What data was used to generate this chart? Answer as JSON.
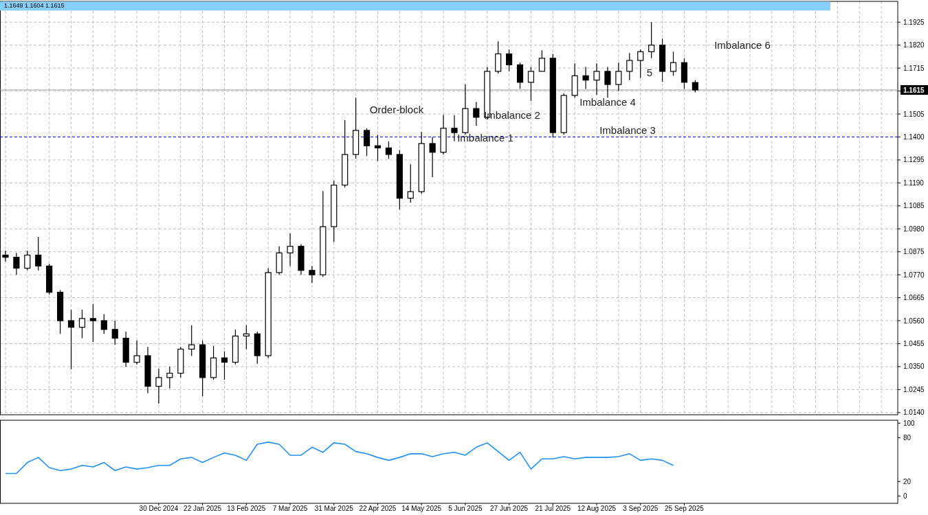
{
  "chart_data": [
    {
      "type": "candlestick",
      "color": "#000000",
      "grid": true,
      "tick_labels": "y",
      "categories": [
        null,
        null,
        null,
        null,
        null,
        null,
        null,
        null,
        null,
        null,
        null,
        null,
        null,
        null,
        null,
        null,
        null,
        null,
        null,
        null,
        null,
        null,
        null,
        null,
        null,
        null,
        null,
        null,
        null,
        null,
        null,
        null,
        null,
        null,
        null,
        null,
        null,
        null,
        null,
        null,
        null,
        null,
        null,
        null,
        null,
        null,
        null,
        null,
        null,
        null,
        null,
        null,
        null,
        null,
        null,
        null,
        null,
        null,
        null,
        null,
        null,
        null,
        null,
        null,
        null,
        null,
        null,
        null,
        null,
        null,
        null,
        null,
        null,
        null,
        null,
        null,
        null,
        null,
        null,
        null,
        null,
        null
      ],
      "ohlc": [
        [
          1.086,
          1.088,
          1.083,
          1.085
        ],
        [
          1.085,
          1.087,
          1.077,
          1.08
        ],
        [
          1.08,
          1.088,
          1.079,
          1.086
        ],
        [
          1.086,
          1.0943,
          1.079,
          1.081
        ],
        [
          1.081,
          1.082,
          1.068,
          1.069
        ],
        [
          1.069,
          1.07,
          1.05,
          1.056
        ],
        [
          1.056,
          1.061,
          1.0338,
          1.053
        ],
        [
          1.053,
          1.061,
          1.048,
          1.057
        ],
        [
          1.057,
          1.0636,
          1.0463,
          1.056
        ],
        [
          1.056,
          1.059,
          1.05,
          1.052
        ],
        [
          1.052,
          1.056,
          1.045,
          1.048
        ],
        [
          1.048,
          1.051,
          1.035,
          1.037
        ],
        [
          1.037,
          1.047,
          1.036,
          1.04
        ],
        [
          1.04,
          1.044,
          1.0228,
          1.026
        ],
        [
          1.026,
          1.034,
          1.0181,
          1.03
        ],
        [
          1.03,
          1.035,
          1.025,
          1.032
        ],
        [
          1.032,
          1.044,
          1.03,
          1.043
        ],
        [
          1.043,
          1.0538,
          1.04,
          1.045
        ],
        [
          1.045,
          1.047,
          1.0215,
          1.03
        ],
        [
          1.03,
          1.0445,
          1.029,
          1.039
        ],
        [
          1.039,
          1.042,
          1.029,
          1.037
        ],
        [
          1.037,
          1.052,
          1.036,
          1.049
        ],
        [
          1.049,
          1.054,
          1.043,
          1.05
        ],
        [
          1.05,
          1.051,
          1.0363,
          1.04
        ],
        [
          1.04,
          1.08,
          1.039,
          1.078
        ],
        [
          1.078,
          1.09,
          1.077,
          1.087
        ],
        [
          1.087,
          1.0959,
          1.081,
          1.09
        ],
        [
          1.09,
          1.091,
          1.077,
          1.079
        ],
        [
          1.079,
          1.081,
          1.0733,
          1.077
        ],
        [
          1.077,
          1.1153,
          1.076,
          1.099
        ],
        [
          1.099,
          1.12,
          1.092,
          1.118
        ],
        [
          1.118,
          1.1477,
          1.117,
          1.132
        ],
        [
          1.132,
          1.158,
          1.13,
          1.143
        ],
        [
          1.143,
          1.144,
          1.1313,
          1.136
        ],
        [
          1.136,
          1.141,
          1.129,
          1.135
        ],
        [
          1.135,
          1.138,
          1.13,
          1.132
        ],
        [
          1.132,
          1.134,
          1.1069,
          1.112
        ],
        [
          1.112,
          1.1275,
          1.11,
          1.115
        ],
        [
          1.115,
          1.1423,
          1.114,
          1.137
        ],
        [
          1.137,
          1.14,
          1.1216,
          1.133
        ],
        [
          1.133,
          1.1501,
          1.132,
          1.144
        ],
        [
          1.144,
          1.15,
          1.138,
          1.142
        ],
        [
          1.142,
          1.164,
          1.141,
          1.153
        ],
        [
          1.153,
          1.156,
          1.1452,
          1.149
        ],
        [
          1.149,
          1.172,
          1.148,
          1.17
        ],
        [
          1.17,
          1.1837,
          1.169,
          1.178
        ],
        [
          1.178,
          1.18,
          1.17,
          1.173
        ],
        [
          1.173,
          1.174,
          1.162,
          1.165
        ],
        [
          1.165,
          1.172,
          1.1564,
          1.17
        ],
        [
          1.17,
          1.1796,
          1.17,
          1.176
        ],
        [
          1.176,
          1.178,
          1.1398,
          1.142
        ],
        [
          1.142,
          1.16,
          1.141,
          1.159
        ],
        [
          1.159,
          1.1737,
          1.158,
          1.168
        ],
        [
          1.168,
          1.172,
          1.162,
          1.166
        ],
        [
          1.166,
          1.1737,
          1.1592,
          1.17
        ],
        [
          1.17,
          1.172,
          1.158,
          1.164
        ],
        [
          1.164,
          1.174,
          1.161,
          1.17
        ],
        [
          1.17,
          1.1784,
          1.166,
          1.175
        ],
        [
          1.175,
          1.18,
          1.167,
          1.179
        ],
        [
          1.179,
          1.1925,
          1.176,
          1.182
        ],
        [
          1.182,
          1.185,
          1.1652,
          1.17
        ],
        [
          1.17,
          1.179,
          1.168,
          1.174
        ],
        [
          1.174,
          1.176,
          1.162,
          1.165
        ],
        [
          1.1649,
          1.166,
          1.1604,
          1.1615
        ],
        null,
        null,
        null,
        null,
        null,
        null,
        null,
        null,
        null,
        null,
        null,
        null,
        null,
        null,
        null,
        null,
        null,
        null
      ],
      "ylim": [
        1.013,
        1.202
      ],
      "yticks": [
        {
          "value": 1.014,
          "label": "1.0140"
        },
        1.0245,
        {
          "value": 1.035,
          "label": "1.0350"
        },
        1.0455,
        {
          "value": 1.056,
          "label": "1.0560"
        },
        1.0665,
        {
          "value": 1.077,
          "label": "1.0770"
        },
        1.0875,
        {
          "value": 1.098,
          "label": "1.0980"
        },
        1.1085,
        {
          "value": 1.119,
          "label": "1.1190"
        },
        1.1295,
        {
          "value": 1.14,
          "label": "1.1400"
        },
        1.1505,
        {
          "value": 1.161,
          "label": null
        },
        1.1715,
        {
          "value": 1.182,
          "label": "1.1820"
        },
        1.1925
      ],
      "bands": [
        {
          "axis": "y",
          "from": 1.1978,
          "to": 1.2019,
          "color": "#87cefa"
        }
      ],
      "ref_lines": [
        {
          "axis": "y",
          "value": 1.14,
          "color": "#0000ff",
          "line_style": "dashed"
        },
        {
          "axis": "y",
          "value": 1.1615,
          "label": "1.1615",
          "color": "#a0a0a0",
          "line_style": "solid"
        }
      ],
      "annotations": [
        "1.1649 1.1604 1.1615",
        "Order-block",
        "Imbalance 1",
        "Imbalance 2",
        "Imbalance 3",
        "Imbalance 4",
        "5",
        "Imbalance 6"
      ]
    },
    {
      "type": "line",
      "grid": false,
      "color": "#1e90ff",
      "marker": "none",
      "line_style": "solid",
      "categories": [
        null,
        null,
        null,
        null,
        null,
        null,
        null,
        null,
        null,
        null,
        null,
        null,
        null,
        null,
        "30 Dec 2024",
        null,
        null,
        null,
        "22 Jan 2025",
        null,
        null,
        null,
        "13 Feb 2025",
        null,
        null,
        null,
        "7 Mar 2025",
        null,
        null,
        null,
        "31 Mar 2025",
        null,
        null,
        null,
        "22 Apr 2025",
        null,
        null,
        null,
        "14 May 2025",
        null,
        null,
        null,
        "5 Jun 2025",
        null,
        null,
        null,
        "27 Jun 2025",
        null,
        null,
        null,
        "21 Jul 2025",
        null,
        null,
        null,
        "12 Aug 2025",
        null,
        null,
        null,
        "3 Sep 2025",
        null,
        null,
        null,
        "25 Sep 2025",
        null,
        null,
        null,
        null,
        null,
        null,
        null,
        null,
        null,
        null,
        null,
        null,
        null,
        null,
        null,
        null,
        null,
        null,
        null
      ],
      "values": [
        31,
        31,
        46,
        53,
        39,
        35,
        37,
        42,
        40,
        46,
        35,
        40,
        37,
        39,
        42,
        42,
        51,
        53,
        46,
        53,
        59,
        56,
        49,
        71,
        74,
        71,
        56,
        56,
        67,
        60,
        73,
        71,
        61,
        58,
        53,
        49,
        53,
        58,
        58,
        54,
        58,
        60,
        56,
        67,
        73,
        61,
        49,
        60,
        37,
        51,
        51,
        54,
        51,
        53,
        53,
        53,
        54,
        58,
        49,
        51,
        49,
        42,
        null,
        null,
        null,
        null,
        null,
        null,
        null,
        null,
        null,
        null,
        null,
        null,
        null,
        null,
        null,
        null,
        null,
        null,
        null,
        null
      ],
      "ylim": [
        -10,
        104
      ],
      "yticks": [
        0,
        20,
        80,
        100
      ]
    }
  ]
}
